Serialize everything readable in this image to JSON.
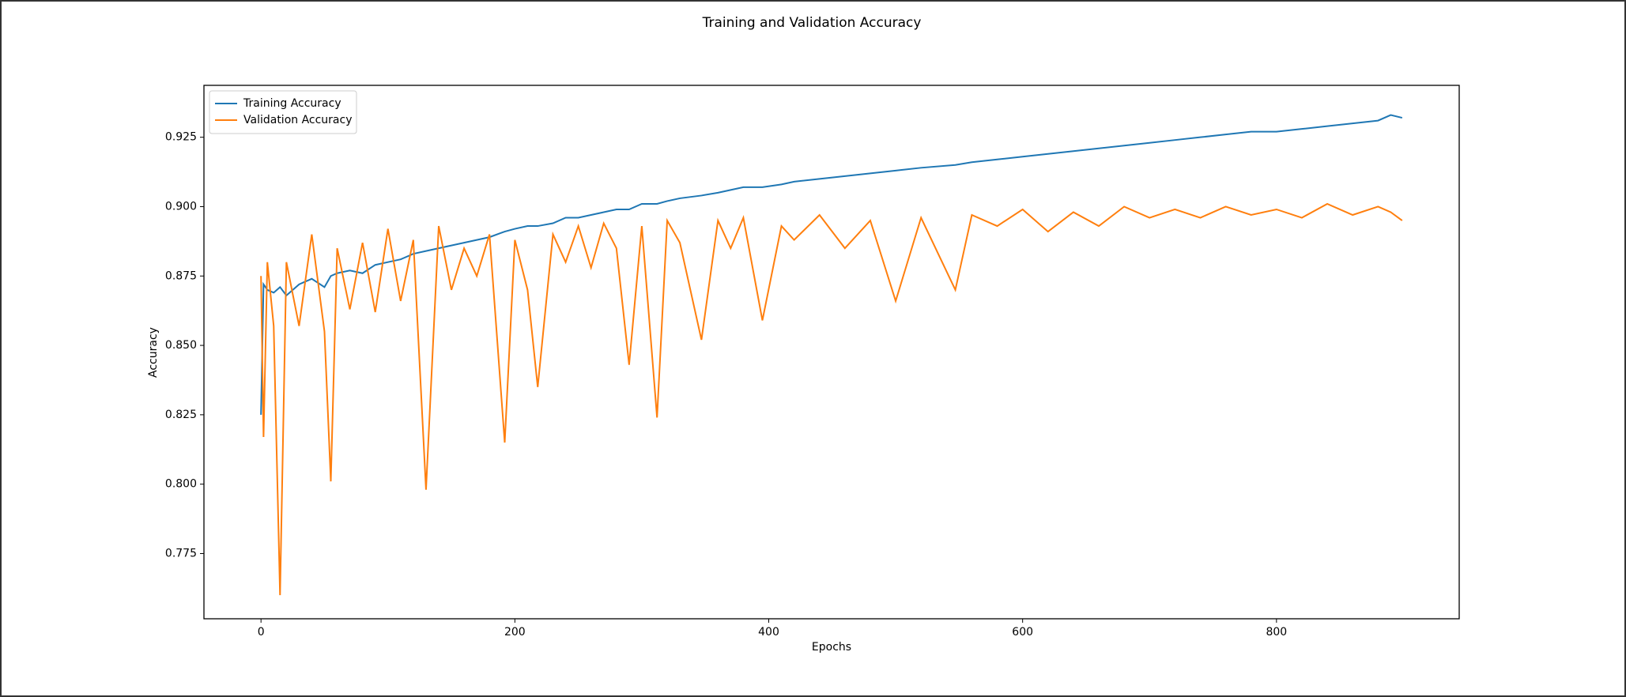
{
  "chart_data": {
    "type": "line",
    "title": "Training and Validation Accuracy",
    "x_label": "Epochs",
    "y_label": "Accuracy",
    "x": [
      0,
      2,
      5,
      10,
      15,
      20,
      30,
      40,
      50,
      55,
      60,
      70,
      80,
      90,
      100,
      110,
      120,
      130,
      140,
      150,
      160,
      170,
      180,
      192,
      200,
      210,
      218,
      230,
      240,
      250,
      260,
      270,
      280,
      290,
      300,
      312,
      320,
      330,
      347,
      360,
      370,
      380,
      395,
      410,
      420,
      440,
      460,
      480,
      500,
      520,
      547,
      560,
      580,
      600,
      620,
      640,
      660,
      680,
      700,
      720,
      740,
      760,
      780,
      800,
      820,
      840,
      860,
      880,
      890,
      899
    ],
    "series": [
      {
        "name": "Training Accuracy",
        "color": "#1f77b4",
        "values": [
          0.825,
          0.872,
          0.87,
          0.869,
          0.871,
          0.868,
          0.872,
          0.874,
          0.871,
          0.875,
          0.876,
          0.877,
          0.876,
          0.879,
          0.88,
          0.881,
          0.883,
          0.884,
          0.885,
          0.886,
          0.887,
          0.888,
          0.889,
          0.891,
          0.892,
          0.893,
          0.893,
          0.894,
          0.896,
          0.896,
          0.897,
          0.898,
          0.899,
          0.899,
          0.901,
          0.901,
          0.902,
          0.903,
          0.904,
          0.905,
          0.906,
          0.907,
          0.907,
          0.908,
          0.909,
          0.91,
          0.911,
          0.912,
          0.913,
          0.914,
          0.915,
          0.916,
          0.917,
          0.918,
          0.919,
          0.92,
          0.921,
          0.922,
          0.923,
          0.924,
          0.925,
          0.926,
          0.927,
          0.927,
          0.928,
          0.929,
          0.93,
          0.931,
          0.933,
          0.932
        ]
      },
      {
        "name": "Validation Accuracy",
        "color": "#ff7f0e",
        "values": [
          0.875,
          0.817,
          0.88,
          0.857,
          0.76,
          0.88,
          0.857,
          0.89,
          0.855,
          0.801,
          0.885,
          0.863,
          0.887,
          0.862,
          0.892,
          0.866,
          0.888,
          0.798,
          0.893,
          0.87,
          0.885,
          0.875,
          0.89,
          0.815,
          0.888,
          0.87,
          0.835,
          0.89,
          0.88,
          0.893,
          0.878,
          0.894,
          0.885,
          0.843,
          0.893,
          0.824,
          0.895,
          0.887,
          0.852,
          0.895,
          0.885,
          0.896,
          0.859,
          0.893,
          0.888,
          0.897,
          0.885,
          0.895,
          0.866,
          0.896,
          0.87,
          0.897,
          0.893,
          0.899,
          0.891,
          0.898,
          0.893,
          0.9,
          0.896,
          0.899,
          0.896,
          0.9,
          0.897,
          0.899,
          0.896,
          0.901,
          0.897,
          0.9,
          0.898,
          0.895
        ]
      }
    ],
    "xlim": [
      -44.95,
      943.95
    ],
    "xticks": [
      0,
      200,
      400,
      600,
      800
    ],
    "ylim": [
      0.7515,
      0.9437
    ],
    "yticks": [
      0.775,
      {
        "value": 0.8,
        "label": "0.800"
      },
      0.825,
      {
        "value": 0.85,
        "label": "0.850"
      },
      0.875,
      {
        "value": 0.9,
        "label": "0.900"
      },
      0.925
    ],
    "grid": false,
    "legend": "upper left"
  }
}
